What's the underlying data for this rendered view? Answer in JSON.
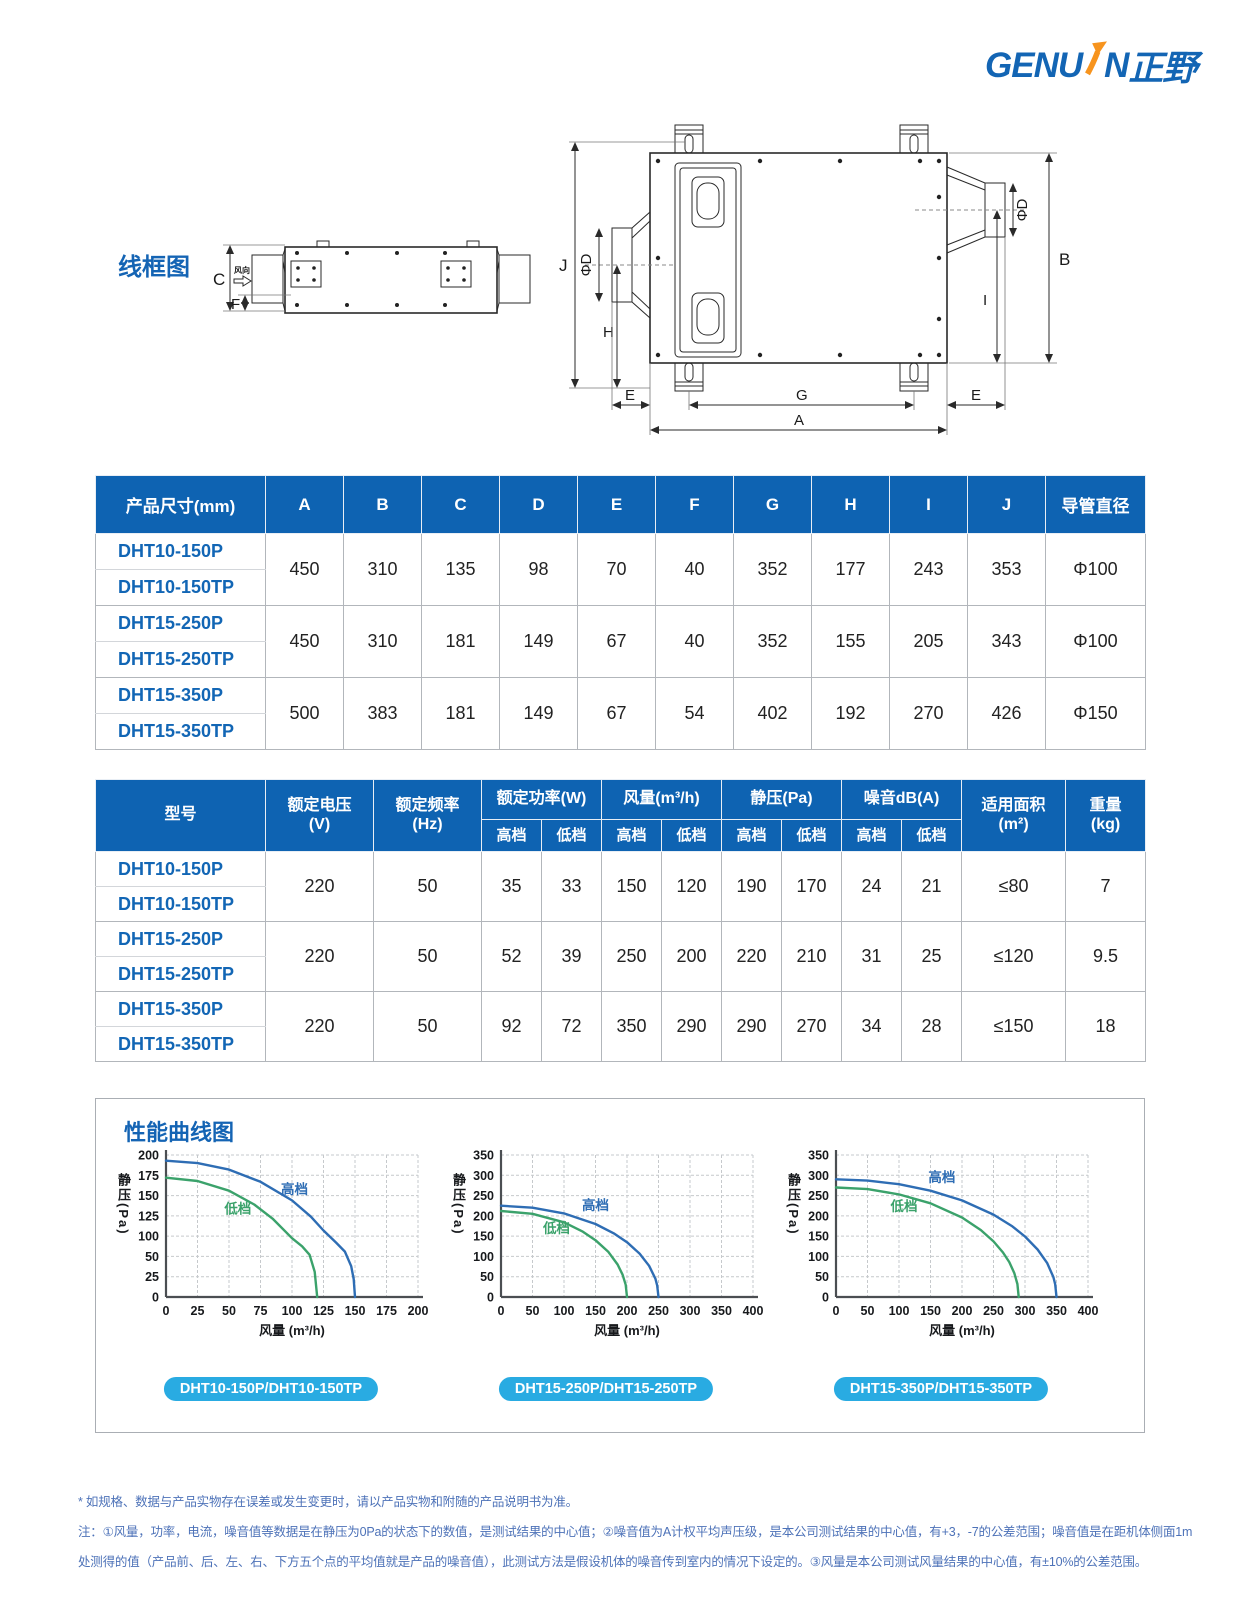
{
  "page": {
    "logo": {
      "part1": "GENU",
      "part2": "N",
      "cn": "正野"
    },
    "wireframe": {
      "title": "线框图",
      "side": {
        "c": "C",
        "f": "F",
        "wind": "风向"
      },
      "top": {
        "j": "J",
        "phid_left": "ΦD",
        "h": "H",
        "b": "B",
        "i": "I",
        "phid_right": "ΦD",
        "e_left": "E",
        "g": "G",
        "e_right": "E",
        "a": "A"
      }
    },
    "dim_table": {
      "header": [
        "产品尺寸(mm)",
        "A",
        "B",
        "C",
        "D",
        "E",
        "F",
        "G",
        "H",
        "I",
        "J",
        "导管直径"
      ],
      "groups": [
        {
          "model_a": "DHT10-150P",
          "model_b": "DHT10-150TP",
          "values": [
            "450",
            "310",
            "135",
            "98",
            "70",
            "40",
            "352",
            "177",
            "243",
            "353",
            "Φ100"
          ]
        },
        {
          "model_a": "DHT15-250P",
          "model_b": "DHT15-250TP",
          "values": [
            "450",
            "310",
            "181",
            "149",
            "67",
            "40",
            "352",
            "155",
            "205",
            "343",
            "Φ100"
          ]
        },
        {
          "model_a": "DHT15-350P",
          "model_b": "DHT15-350TP",
          "values": [
            "500",
            "383",
            "181",
            "149",
            "67",
            "54",
            "402",
            "192",
            "270",
            "426",
            "Φ150"
          ]
        }
      ]
    },
    "spec_table": {
      "h_model": "型号",
      "h_voltage": "额定电压",
      "h_voltage2": "(V)",
      "h_freq": "额定频率",
      "h_freq2": "(Hz)",
      "h_power": "额定功率(W)",
      "h_air": "风量(m³/h)",
      "h_press": "静压(Pa)",
      "h_noise": "噪音dB(A)",
      "h_area": "适用面积",
      "h_area2": "(m²)",
      "h_weight": "重量",
      "h_weight2": "(kg)",
      "h_high": "高档",
      "h_low": "低档",
      "groups": [
        {
          "model_a": "DHT10-150P",
          "model_b": "DHT10-150TP",
          "values": [
            "220",
            "50",
            "35",
            "33",
            "150",
            "120",
            "190",
            "170",
            "24",
            "21",
            "≤80",
            "7"
          ]
        },
        {
          "model_a": "DHT15-250P",
          "model_b": "DHT15-250TP",
          "values": [
            "220",
            "50",
            "52",
            "39",
            "250",
            "200",
            "220",
            "210",
            "31",
            "25",
            "≤120",
            "9.5"
          ]
        },
        {
          "model_a": "DHT15-350P",
          "model_b": "DHT15-350TP",
          "values": [
            "220",
            "50",
            "92",
            "72",
            "350",
            "290",
            "290",
            "270",
            "34",
            "28",
            "≤150",
            "18"
          ]
        }
      ]
    },
    "perf": {
      "title": "性能曲线图"
    },
    "notes": [
      "* 如规格、数据与产品实物存在误差或发生变更时，请以产品实物和附随的产品说明书为准。",
      "注：①风量，功率，电流，噪音值等数据是在静压为0Pa的状态下的数值，是测试结果的中心值；②噪音值为A计权平均声压级，是本公司测试结果的中心值，有+3，-7的公差范围；噪音值是在距机体侧面1m",
      "处测得的值（产品前、后、左、右、下方五个点的平均值就是产品的噪音值），此测试方法是假设机体的噪音传到室内的情况下设定的。③风量是本公司测试风量结果的中心值，有±10%的公差范围。"
    ],
    "colors": {
      "header_blue": "#0e63b2",
      "model_blue": "#1266b5",
      "title_blue": "#1464b4",
      "badge_cyan": "#29abe2",
      "curve_blue": "#2e6db4",
      "curve_green": "#3ba26b",
      "note_blue": "#4d72b8",
      "logo_orange": "#f7941e"
    }
  },
  "chart_data": [
    {
      "type": "line",
      "title": "DHT10-150P/DHT10-150TP",
      "xlabel": "风量 (m³/h)",
      "ylabel": "静压(Pa)",
      "xlim": [
        0,
        200
      ],
      "ylim": [
        0,
        200
      ],
      "grid": true,
      "legend": "inline",
      "x_ticks": [
        0,
        25,
        50,
        75,
        100,
        125,
        150,
        175,
        200
      ],
      "y_tick_labels": [
        "200",
        "175",
        "150",
        "125",
        "100",
        "50",
        "25",
        "0"
      ],
      "series": [
        {
          "name": "高档",
          "color": "#2e6db4",
          "label_at": [
            102,
            152
          ],
          "points": [
            [
              0,
              193
            ],
            [
              25,
              190
            ],
            [
              50,
              182
            ],
            [
              75,
              167
            ],
            [
              100,
              144
            ],
            [
              115,
              124
            ],
            [
              125,
              107
            ],
            [
              135,
              84
            ],
            [
              142,
              62
            ],
            [
              147,
              38
            ],
            [
              149,
              22
            ],
            [
              150,
              0
            ]
          ]
        },
        {
          "name": "低档",
          "color": "#3ba26b",
          "label_at": [
            57,
            128
          ],
          "points": [
            [
              0,
              172
            ],
            [
              25,
              168
            ],
            [
              50,
              156
            ],
            [
              70,
              139
            ],
            [
              85,
              121
            ],
            [
              100,
              95
            ],
            [
              108,
              75
            ],
            [
              114,
              54
            ],
            [
              118,
              31
            ],
            [
              120,
              0
            ]
          ]
        }
      ]
    },
    {
      "type": "line",
      "title": "DHT15-250P/DHT15-250TP",
      "xlabel": "风量 (m³/h)",
      "ylabel": "静压(Pa)",
      "xlim": [
        0,
        400
      ],
      "ylim": [
        0,
        350
      ],
      "grid": true,
      "legend": "inline",
      "x_ticks": [
        0,
        50,
        100,
        150,
        200,
        250,
        300,
        350,
        400
      ],
      "y_tick_labels": [
        "350",
        "300",
        "250",
        "200",
        "150",
        "100",
        "50",
        "0"
      ],
      "series": [
        {
          "name": "高档",
          "color": "#2e6db4",
          "label_at": [
            150,
            215
          ],
          "points": [
            [
              0,
              225
            ],
            [
              50,
              220
            ],
            [
              100,
              206
            ],
            [
              150,
              180
            ],
            [
              180,
              156
            ],
            [
              200,
              135
            ],
            [
              220,
              107
            ],
            [
              235,
              77
            ],
            [
              245,
              45
            ],
            [
              248,
              28
            ],
            [
              250,
              0
            ]
          ]
        },
        {
          "name": "低档",
          "color": "#3ba26b",
          "label_at": [
            88,
            158
          ],
          "points": [
            [
              0,
              212
            ],
            [
              50,
              205
            ],
            [
              100,
              184
            ],
            [
              130,
              161
            ],
            [
              150,
              140
            ],
            [
              170,
              112
            ],
            [
              185,
              80
            ],
            [
              193,
              55
            ],
            [
              198,
              30
            ],
            [
              200,
              0
            ]
          ]
        }
      ]
    },
    {
      "type": "line",
      "title": "DHT15-350P/DHT15-350TP",
      "xlabel": "风量 (m³/h)",
      "ylabel": "静压(Pa)",
      "xlim": [
        0,
        400
      ],
      "ylim": [
        0,
        350
      ],
      "grid": true,
      "legend": "inline",
      "x_ticks": [
        0,
        50,
        100,
        150,
        200,
        250,
        300,
        350,
        400
      ],
      "y_tick_labels": [
        "350",
        "300",
        "250",
        "200",
        "150",
        "100",
        "50",
        "0"
      ],
      "series": [
        {
          "name": "高档",
          "color": "#2e6db4",
          "label_at": [
            168,
            283
          ],
          "points": [
            [
              0,
              290
            ],
            [
              50,
              287
            ],
            [
              100,
              278
            ],
            [
              150,
              262
            ],
            [
              200,
              238
            ],
            [
              250,
              203
            ],
            [
              280,
              174
            ],
            [
              300,
              149
            ],
            [
              320,
              117
            ],
            [
              335,
              84
            ],
            [
              345,
              49
            ],
            [
              348,
              31
            ],
            [
              350,
              0
            ]
          ]
        },
        {
          "name": "低档",
          "color": "#3ba26b",
          "label_at": [
            108,
            212
          ],
          "points": [
            [
              0,
              270
            ],
            [
              50,
              266
            ],
            [
              100,
              253
            ],
            [
              150,
              231
            ],
            [
              200,
              196
            ],
            [
              230,
              165
            ],
            [
              250,
              137
            ],
            [
              265,
              110
            ],
            [
              275,
              86
            ],
            [
              283,
              59
            ],
            [
              288,
              32
            ],
            [
              290,
              0
            ]
          ]
        }
      ]
    }
  ]
}
